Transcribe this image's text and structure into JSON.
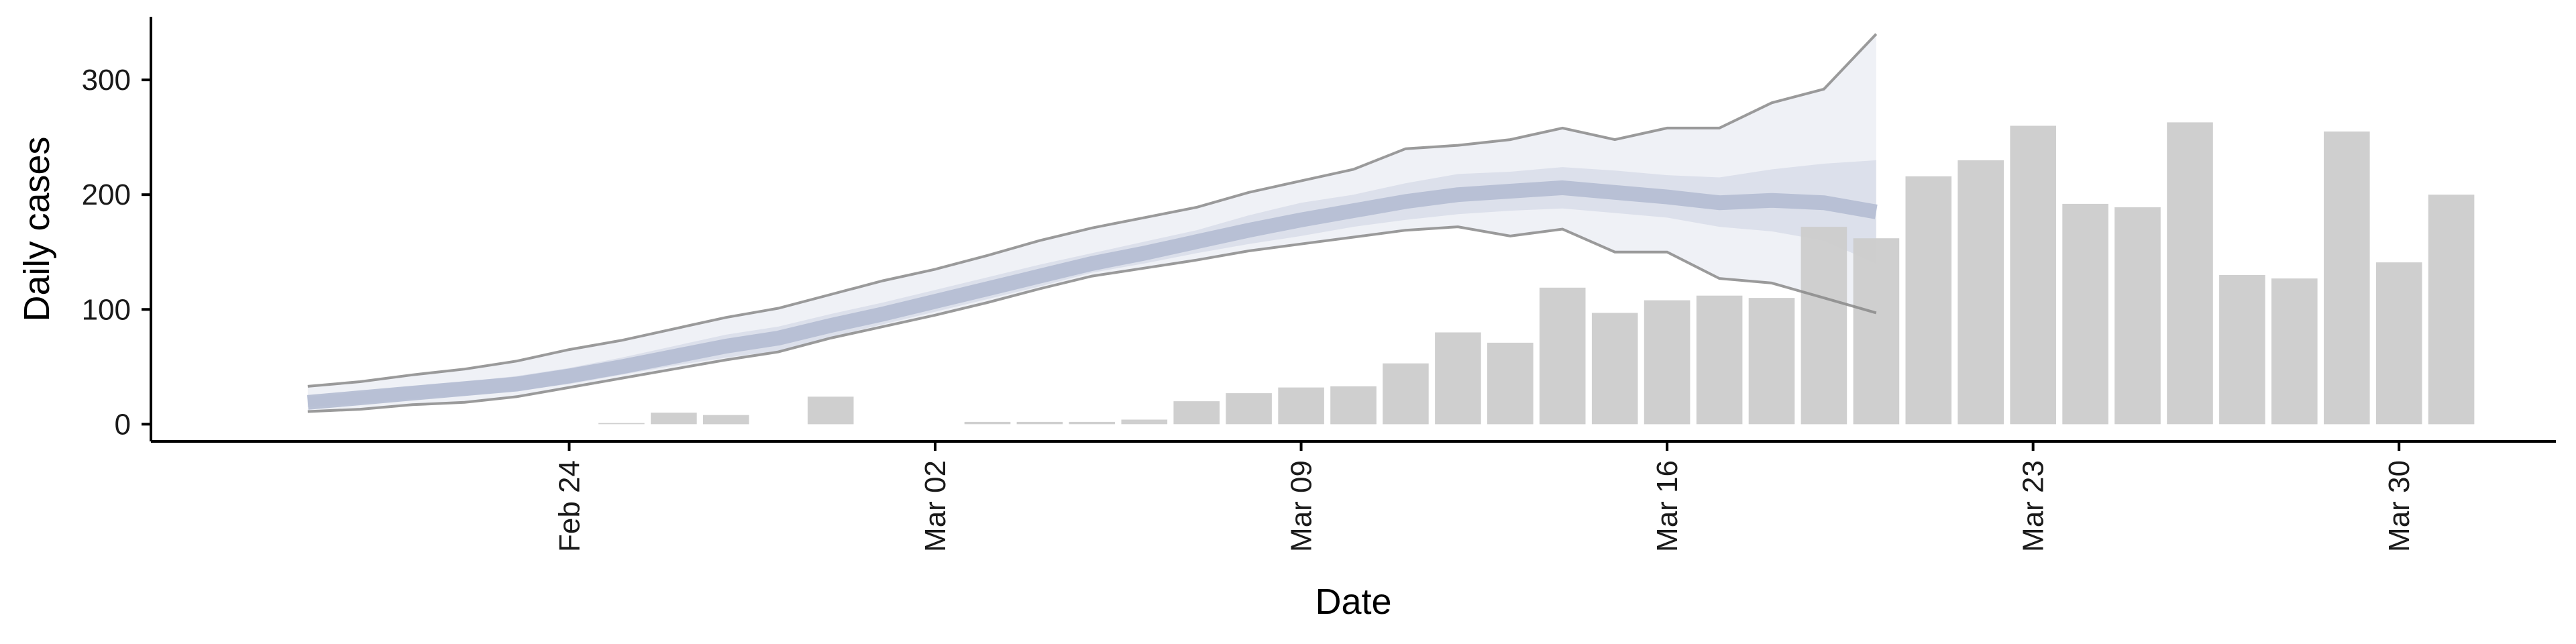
{
  "chart_data": {
    "type": "bar",
    "title": "",
    "xlabel": "Date",
    "ylabel": "Daily cases",
    "ylim": [
      -15,
      355
    ],
    "x_range": [
      "2020-02-16",
      "2020-04-02"
    ],
    "grid": false,
    "legend": "none",
    "x_ticks": [
      {
        "date": "2020-02-24",
        "label": "Feb 24"
      },
      {
        "date": "2020-03-02",
        "label": "Mar 02"
      },
      {
        "date": "2020-03-09",
        "label": "Mar 09"
      },
      {
        "date": "2020-03-16",
        "label": "Mar 16"
      },
      {
        "date": "2020-03-23",
        "label": "Mar 23"
      },
      {
        "date": "2020-03-30",
        "label": "Mar 30"
      }
    ],
    "y_ticks": [
      0,
      100,
      200,
      300
    ],
    "bars": {
      "name": "",
      "color": "#cccccc",
      "dates": [
        "2020-02-25",
        "2020-02-26",
        "2020-02-27",
        "2020-02-29",
        "2020-03-03",
        "2020-03-04",
        "2020-03-05",
        "2020-03-06",
        "2020-03-07",
        "2020-03-08",
        "2020-03-09",
        "2020-03-10",
        "2020-03-11",
        "2020-03-12",
        "2020-03-13",
        "2020-03-14",
        "2020-03-15",
        "2020-03-16",
        "2020-03-17",
        "2020-03-18",
        "2020-03-19",
        "2020-03-20",
        "2020-03-21",
        "2020-03-22",
        "2020-03-23",
        "2020-03-24",
        "2020-03-25",
        "2020-03-26",
        "2020-03-27",
        "2020-03-28",
        "2020-03-29",
        "2020-03-30",
        "2020-03-31"
      ],
      "values": [
        1,
        10,
        8,
        24,
        2,
        2,
        2,
        4,
        20,
        27,
        32,
        33,
        53,
        80,
        71,
        119,
        97,
        108,
        112,
        110,
        172,
        162,
        216,
        230,
        260,
        192,
        189,
        263,
        130,
        127,
        255,
        141,
        200
      ]
    },
    "estimate": {
      "dates": [
        "2020-02-19",
        "2020-02-20",
        "2020-02-21",
        "2020-02-22",
        "2020-02-23",
        "2020-02-24",
        "2020-02-25",
        "2020-02-26",
        "2020-02-27",
        "2020-02-28",
        "2020-02-29",
        "2020-03-01",
        "2020-03-02",
        "2020-03-03",
        "2020-03-04",
        "2020-03-05",
        "2020-03-06",
        "2020-03-07",
        "2020-03-08",
        "2020-03-09",
        "2020-03-10",
        "2020-03-11",
        "2020-03-12",
        "2020-03-13",
        "2020-03-14",
        "2020-03-15",
        "2020-03-16",
        "2020-03-17",
        "2020-03-18",
        "2020-03-19",
        "2020-03-20",
        "2020-03-21",
        "2020-03-22"
      ],
      "outer_upper": [
        33,
        37,
        43,
        48,
        55,
        65,
        73,
        83,
        93,
        101,
        113,
        125,
        135,
        147,
        160,
        171,
        180,
        189,
        202,
        212,
        222,
        240,
        243,
        248,
        258,
        248,
        258,
        258,
        280,
        292,
        340,
        null,
        null
      ],
      "outer_lower": [
        11,
        13,
        17,
        19,
        24,
        32,
        40,
        48,
        56,
        63,
        75,
        85,
        95,
        106,
        118,
        129,
        136,
        143,
        151,
        157,
        163,
        169,
        172,
        164,
        170,
        150,
        150,
        127,
        123,
        110,
        97,
        null,
        null
      ],
      "inner_upper": [
        24,
        28,
        33,
        37,
        42,
        49,
        58,
        68,
        78,
        85,
        96,
        106,
        117,
        128,
        139,
        149,
        159,
        169,
        182,
        193,
        200,
        210,
        218,
        220,
        224,
        221,
        217,
        215,
        222,
        227,
        230,
        null,
        null
      ],
      "inner_lower": [
        15,
        18,
        22,
        25,
        29,
        35,
        43,
        51,
        58,
        64,
        76,
        87,
        98,
        109,
        120,
        132,
        140,
        149,
        157,
        164,
        172,
        178,
        183,
        186,
        188,
        184,
        180,
        172,
        168,
        160,
        140,
        null,
        null
      ],
      "median": [
        19,
        23,
        27,
        31,
        35,
        42,
        50,
        59,
        68,
        75,
        86,
        96,
        107,
        118,
        129,
        140,
        149,
        159,
        169,
        178,
        186,
        194,
        200,
        203,
        206,
        202,
        198,
        193,
        195,
        193,
        185,
        null,
        null
      ]
    },
    "colors": {
      "bars": "#cccccc",
      "median": "#b4bdd3",
      "inner_band": "#d5dae7",
      "outer_band": "#eceef5",
      "outer_lines": "#8a8a8a",
      "axis": "#000000"
    }
  }
}
